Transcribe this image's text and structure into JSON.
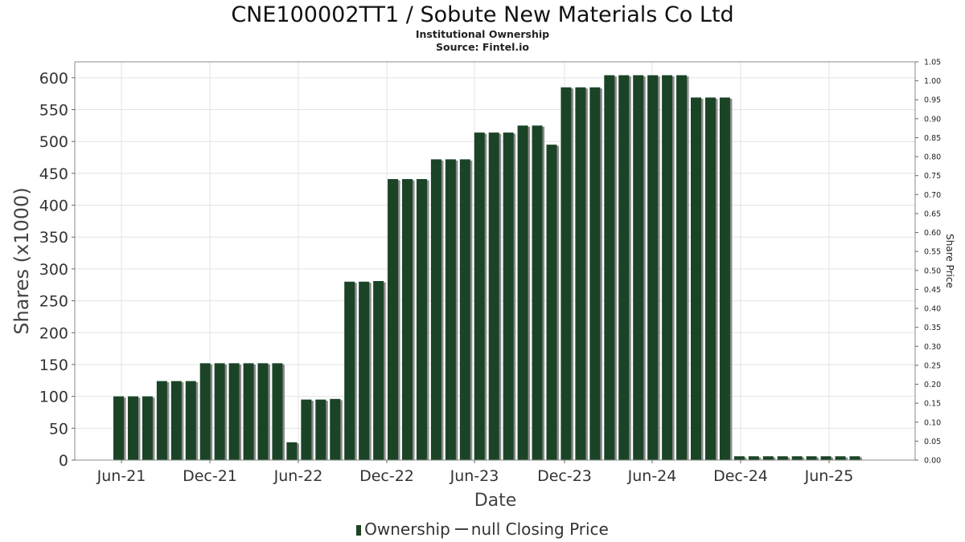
{
  "header": {
    "title": "CNE100002TT1 / Sobute New Materials Co Ltd",
    "subtitle": "Institutional Ownership",
    "source": "Source: Fintel.io"
  },
  "legend": {
    "ownership_label": "Ownership",
    "price_label": "null Closing Price"
  },
  "colors": {
    "bar": "#1b4427",
    "bar_shadow": "#8a8a8a",
    "grid": "#e3e3e3",
    "frame": "#888888"
  },
  "chart_data": {
    "type": "bar",
    "title": "CNE100002TT1 / Sobute New Materials Co Ltd",
    "subtitle": "Institutional Ownership",
    "xlabel": "Date",
    "ylabel": "Shares (x1000)",
    "y2label": "Share Price",
    "x_ticks": [
      "Jun-21",
      "Dec-21",
      "Jun-22",
      "Dec-22",
      "Jun-23",
      "Dec-23",
      "Jun-24",
      "Dec-24",
      "Jun-25"
    ],
    "ylim": [
      0,
      625
    ],
    "y_ticks": [
      0,
      50,
      100,
      150,
      200,
      250,
      300,
      350,
      400,
      450,
      500,
      550,
      600
    ],
    "y2lim": [
      0,
      1.05
    ],
    "y2_ticks": [
      "0.00",
      "0.05",
      "0.10",
      "0.15",
      "0.20",
      "0.25",
      "0.30",
      "0.35",
      "0.40",
      "0.45",
      "0.50",
      "0.55",
      "0.60",
      "0.65",
      "0.70",
      "0.75",
      "0.80",
      "0.85",
      "0.90",
      "0.95",
      "1.00",
      "1.05"
    ],
    "grid": true,
    "legend_position": "bottom",
    "series": [
      {
        "name": "Ownership",
        "values": [
          100,
          100,
          100,
          124,
          124,
          124,
          152,
          152,
          152,
          152,
          152,
          152,
          28,
          95,
          95,
          96,
          280,
          280,
          281,
          441,
          441,
          441,
          472,
          472,
          472,
          514,
          514,
          514,
          525,
          525,
          495,
          585,
          585,
          585,
          604,
          604,
          604,
          604,
          604,
          604,
          569,
          569,
          569,
          6,
          6,
          6,
          6,
          6,
          6,
          6,
          6,
          6
        ]
      }
    ]
  }
}
